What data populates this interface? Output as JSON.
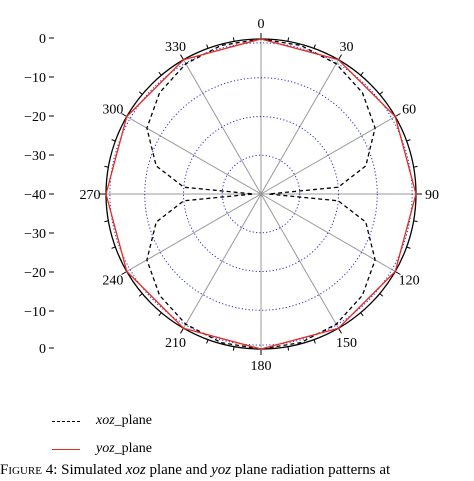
{
  "chart_data": {
    "type": "polar-line",
    "theta_unit": "degrees",
    "r_unit": "dB",
    "angular_ticks": [
      "0",
      "30",
      "60",
      "90",
      "120",
      "150",
      "180",
      "210",
      "240",
      "270",
      "300",
      "330"
    ],
    "radial_ticks_top": [
      "0",
      "−10",
      "−20",
      "−30",
      "−40"
    ],
    "radial_ticks_bottom": [
      "−30",
      "−20",
      "−10",
      "0"
    ],
    "r_range": [
      -40,
      0
    ],
    "grid_rings_db": [
      -10,
      -20,
      -30
    ],
    "series": [
      {
        "name_italic": "xoz",
        "name_suffix": "_plane",
        "style": "dashed",
        "color": "#000000",
        "theta": [
          0,
          15,
          30,
          45,
          60,
          75,
          85,
          90,
          95,
          105,
          120,
          135,
          150,
          165,
          180,
          195,
          210,
          225,
          240,
          255,
          265,
          270,
          275,
          285,
          300,
          315,
          330,
          345,
          360
        ],
        "r": [
          0,
          -0.3,
          -1.2,
          -3,
          -6,
          -12,
          -20,
          -38,
          -20,
          -12,
          -6,
          -3,
          -1.2,
          -0.3,
          0,
          -0.3,
          -1.2,
          -3,
          -6,
          -12,
          -20,
          -38,
          -20,
          -12,
          -6,
          -3,
          -1.2,
          -0.3,
          0
        ]
      },
      {
        "name_italic": "yoz",
        "name_suffix": "_plane",
        "style": "solid",
        "color": "#e8291c",
        "theta": [
          0,
          30,
          60,
          90,
          120,
          150,
          180,
          210,
          240,
          270,
          300,
          330,
          360
        ],
        "r": [
          0,
          0,
          0,
          0,
          0,
          0,
          0,
          0,
          0,
          0,
          0,
          0,
          0
        ]
      }
    ],
    "reference_circle": {
      "r": -1,
      "style": "dotted",
      "color": "#2b2bd6"
    }
  },
  "caption": {
    "label": "Figure 4:",
    "text_1": " Simulated ",
    "it_1": "xoz",
    "text_2": " plane and ",
    "it_2": "yoz",
    "text_3": " plane radiation patterns at"
  },
  "colors": {
    "grid": "#999999",
    "dotted_grid": "#2b2bd6",
    "axis": "#000000"
  }
}
